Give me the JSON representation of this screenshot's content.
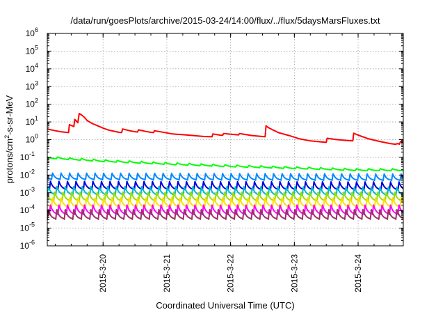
{
  "chart_data": {
    "type": "line",
    "title": "/data/run/goesPlots/archive/2015-03-24/14:00/flux/../flux/5daysMarsFluxes.txt",
    "xlabel": "Coordinated Universal Time (UTC)",
    "ylabel": "protons/cm2-s-sr-MeV",
    "y_scale": "log",
    "ylim": [
      1e-06,
      1000000.0
    ],
    "y_ticks": [
      {
        "exp": "-6"
      },
      {
        "exp": "-5"
      },
      {
        "exp": "-4"
      },
      {
        "exp": "-3"
      },
      {
        "exp": "-2"
      },
      {
        "exp": "-1"
      },
      {
        "exp": "0"
      },
      {
        "exp": "1"
      },
      {
        "exp": "2"
      },
      {
        "exp": "3"
      },
      {
        "exp": "4"
      },
      {
        "exp": "5"
      },
      {
        "exp": "6"
      }
    ],
    "xlim": [
      "2015-03-19T03:00",
      "2015-03-24T17:00"
    ],
    "x_ticks": [
      {
        "label": "2015-3-20",
        "at": "2015-03-20T00:00"
      },
      {
        "label": "2015-3-21",
        "at": "2015-03-21T00:00"
      },
      {
        "label": "2015-3-22",
        "at": "2015-03-22T00:00"
      },
      {
        "label": "2015-3-23",
        "at": "2015-03-23T00:00"
      },
      {
        "label": "2015-3-24",
        "at": "2015-03-24T00:00"
      }
    ],
    "grid": true,
    "series": [
      {
        "color": "#ff0000",
        "points": [
          [
            "2015-03-19T03:00",
            4.0
          ],
          [
            "2015-03-19T06:00",
            3.2
          ],
          [
            "2015-03-19T08:00",
            2.8
          ],
          [
            "2015-03-19T10:00",
            2.6
          ],
          [
            "2015-03-19T11:00",
            2.5
          ],
          [
            "2015-03-19T11:20",
            7.0
          ],
          [
            "2015-03-19T13:00",
            5.5
          ],
          [
            "2015-03-19T13:20",
            14.0
          ],
          [
            "2015-03-19T14:00",
            11.0
          ],
          [
            "2015-03-19T14:30",
            9.0
          ],
          [
            "2015-03-19T15:00",
            30.0
          ],
          [
            "2015-03-19T16:00",
            24.0
          ],
          [
            "2015-03-19T17:00",
            18.0
          ],
          [
            "2015-03-19T18:00",
            12.0
          ],
          [
            "2015-03-19T20:00",
            8.0
          ],
          [
            "2015-03-19T22:00",
            6.0
          ],
          [
            "2015-03-20T00:00",
            4.5
          ],
          [
            "2015-03-20T02:00",
            3.5
          ],
          [
            "2015-03-20T04:00",
            3.0
          ],
          [
            "2015-03-20T06:00",
            2.6
          ],
          [
            "2015-03-20T07:00",
            2.5
          ],
          [
            "2015-03-20T07:20",
            4.0
          ],
          [
            "2015-03-20T10:00",
            3.2
          ],
          [
            "2015-03-20T12:00",
            2.8
          ],
          [
            "2015-03-20T13:00",
            2.7
          ],
          [
            "2015-03-20T13:20",
            3.6
          ],
          [
            "2015-03-20T16:00",
            2.9
          ],
          [
            "2015-03-20T18:00",
            2.6
          ],
          [
            "2015-03-20T19:00",
            2.5
          ],
          [
            "2015-03-20T19:20",
            3.2
          ],
          [
            "2015-03-21T00:00",
            2.4
          ],
          [
            "2015-03-21T02:00",
            2.1
          ],
          [
            "2015-03-21T06:00",
            1.9
          ],
          [
            "2015-03-21T10:00",
            1.7
          ],
          [
            "2015-03-21T14:00",
            1.5
          ],
          [
            "2015-03-21T17:00",
            1.45
          ],
          [
            "2015-03-21T17:20",
            2.1
          ],
          [
            "2015-03-21T20:00",
            1.8
          ],
          [
            "2015-03-21T21:00",
            1.75
          ],
          [
            "2015-03-21T21:20",
            2.2
          ],
          [
            "2015-03-22T02:00",
            1.9
          ],
          [
            "2015-03-22T03:00",
            1.85
          ],
          [
            "2015-03-22T03:20",
            2.2
          ],
          [
            "2015-03-22T06:00",
            1.9
          ],
          [
            "2015-03-22T08:00",
            1.7
          ],
          [
            "2015-03-22T12:00",
            1.5
          ],
          [
            "2015-03-22T13:00",
            1.45
          ],
          [
            "2015-03-22T13:20",
            6.0
          ],
          [
            "2015-03-22T14:00",
            5.0
          ],
          [
            "2015-03-22T16:00",
            3.5
          ],
          [
            "2015-03-22T18:00",
            2.5
          ],
          [
            "2015-03-22T22:00",
            1.7
          ],
          [
            "2015-03-23T02:00",
            1.1
          ],
          [
            "2015-03-23T06:00",
            0.85
          ],
          [
            "2015-03-23T10:00",
            0.75
          ],
          [
            "2015-03-23T12:00",
            0.7
          ],
          [
            "2015-03-23T12:20",
            1.2
          ],
          [
            "2015-03-23T16:00",
            1.0
          ],
          [
            "2015-03-23T20:00",
            0.9
          ],
          [
            "2015-03-23T22:00",
            0.85
          ],
          [
            "2015-03-23T22:20",
            2.3
          ],
          [
            "2015-03-24T00:00",
            1.8
          ],
          [
            "2015-03-24T04:00",
            1.1
          ],
          [
            "2015-03-24T08:00",
            0.8
          ],
          [
            "2015-03-24T12:00",
            0.6
          ],
          [
            "2015-03-24T14:00",
            0.55
          ],
          [
            "2015-03-24T15:00",
            0.6
          ],
          [
            "2015-03-24T15:30",
            0.55
          ],
          [
            "2015-03-24T16:00",
            0.8
          ],
          [
            "2015-03-24T17:00",
            0.7
          ]
        ]
      },
      {
        "color": "#00ff00",
        "points": [
          [
            "2015-03-19T03:00",
            0.1
          ],
          [
            "2015-03-20T00:00",
            0.065
          ],
          [
            "2015-03-21T00:00",
            0.045
          ],
          [
            "2015-03-22T00:00",
            0.033
          ],
          [
            "2015-03-23T00:00",
            0.026
          ],
          [
            "2015-03-24T00:00",
            0.02
          ],
          [
            "2015-03-24T17:00",
            0.02
          ]
        ],
        "oscillation": {
          "period_hours": 4.5,
          "ratio": 1.3
        }
      },
      {
        "color": "#0088ff",
        "points": [
          [
            "2015-03-19T03:00",
            0.0085
          ],
          [
            "2015-03-24T17:00",
            0.0075
          ]
        ],
        "oscillation": {
          "period_hours": 3.2,
          "ratio": 2.4
        }
      },
      {
        "color": "#0000dd",
        "points": [
          [
            "2015-03-19T03:00",
            0.0026
          ],
          [
            "2015-03-24T17:00",
            0.0024
          ]
        ],
        "oscillation": {
          "period_hours": 3.2,
          "ratio": 3.0
        }
      },
      {
        "color": "#00bbcc",
        "points": [
          [
            "2015-03-19T03:00",
            0.0013
          ],
          [
            "2015-03-24T17:00",
            0.0012
          ]
        ],
        "oscillation": {
          "period_hours": 3.2,
          "ratio": 3.2
        }
      },
      {
        "color": "#99dd00",
        "points": [
          [
            "2015-03-19T03:00",
            0.0006
          ],
          [
            "2015-03-24T17:00",
            0.0006
          ]
        ],
        "oscillation": {
          "period_hours": 3.2,
          "ratio": 3.3
        }
      },
      {
        "color": "#ffdd00",
        "points": [
          [
            "2015-03-19T03:00",
            0.00028
          ],
          [
            "2015-03-24T17:00",
            0.00028
          ]
        ],
        "oscillation": {
          "period_hours": 3.2,
          "ratio": 3.5
        }
      },
      {
        "color": "#ff00ff",
        "points": [
          [
            "2015-03-19T03:00",
            0.00011
          ],
          [
            "2015-03-24T17:00",
            0.00011
          ]
        ],
        "oscillation": {
          "period_hours": 3.2,
          "ratio": 3.5
        }
      },
      {
        "color": "#993366",
        "points": [
          [
            "2015-03-19T03:00",
            6e-05
          ],
          [
            "2015-03-24T17:00",
            6e-05
          ]
        ],
        "oscillation": {
          "period_hours": 3.2,
          "ratio": 3.6
        }
      }
    ]
  }
}
